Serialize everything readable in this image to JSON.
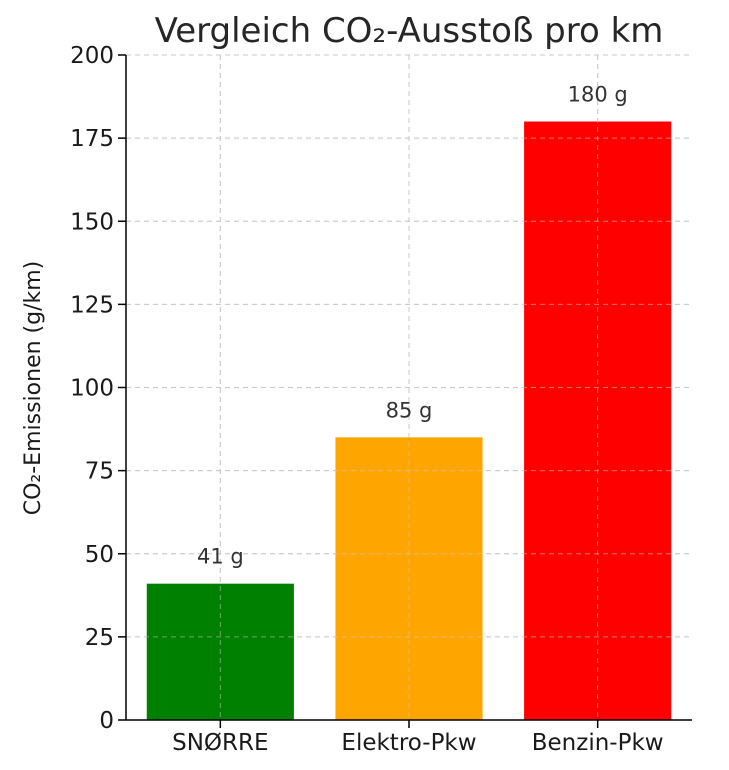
{
  "chart_data": {
    "type": "bar",
    "title": "Vergleich CO₂-Ausstoß pro km",
    "xlabel": "",
    "ylabel": "CO₂-Emissionen (g/km)",
    "ylim": [
      0,
      200
    ],
    "yticks": [
      0,
      25,
      50,
      75,
      100,
      125,
      150,
      175,
      200
    ],
    "grid": true,
    "categories": [
      "SNØRRE",
      "Elektro-Pkw",
      "Benzin-Pkw"
    ],
    "values": [
      41,
      85,
      180
    ],
    "data_labels": [
      "41 g",
      "85 g",
      "180 g"
    ],
    "colors": [
      "#008000",
      "#FFA500",
      "#FF0000"
    ]
  }
}
